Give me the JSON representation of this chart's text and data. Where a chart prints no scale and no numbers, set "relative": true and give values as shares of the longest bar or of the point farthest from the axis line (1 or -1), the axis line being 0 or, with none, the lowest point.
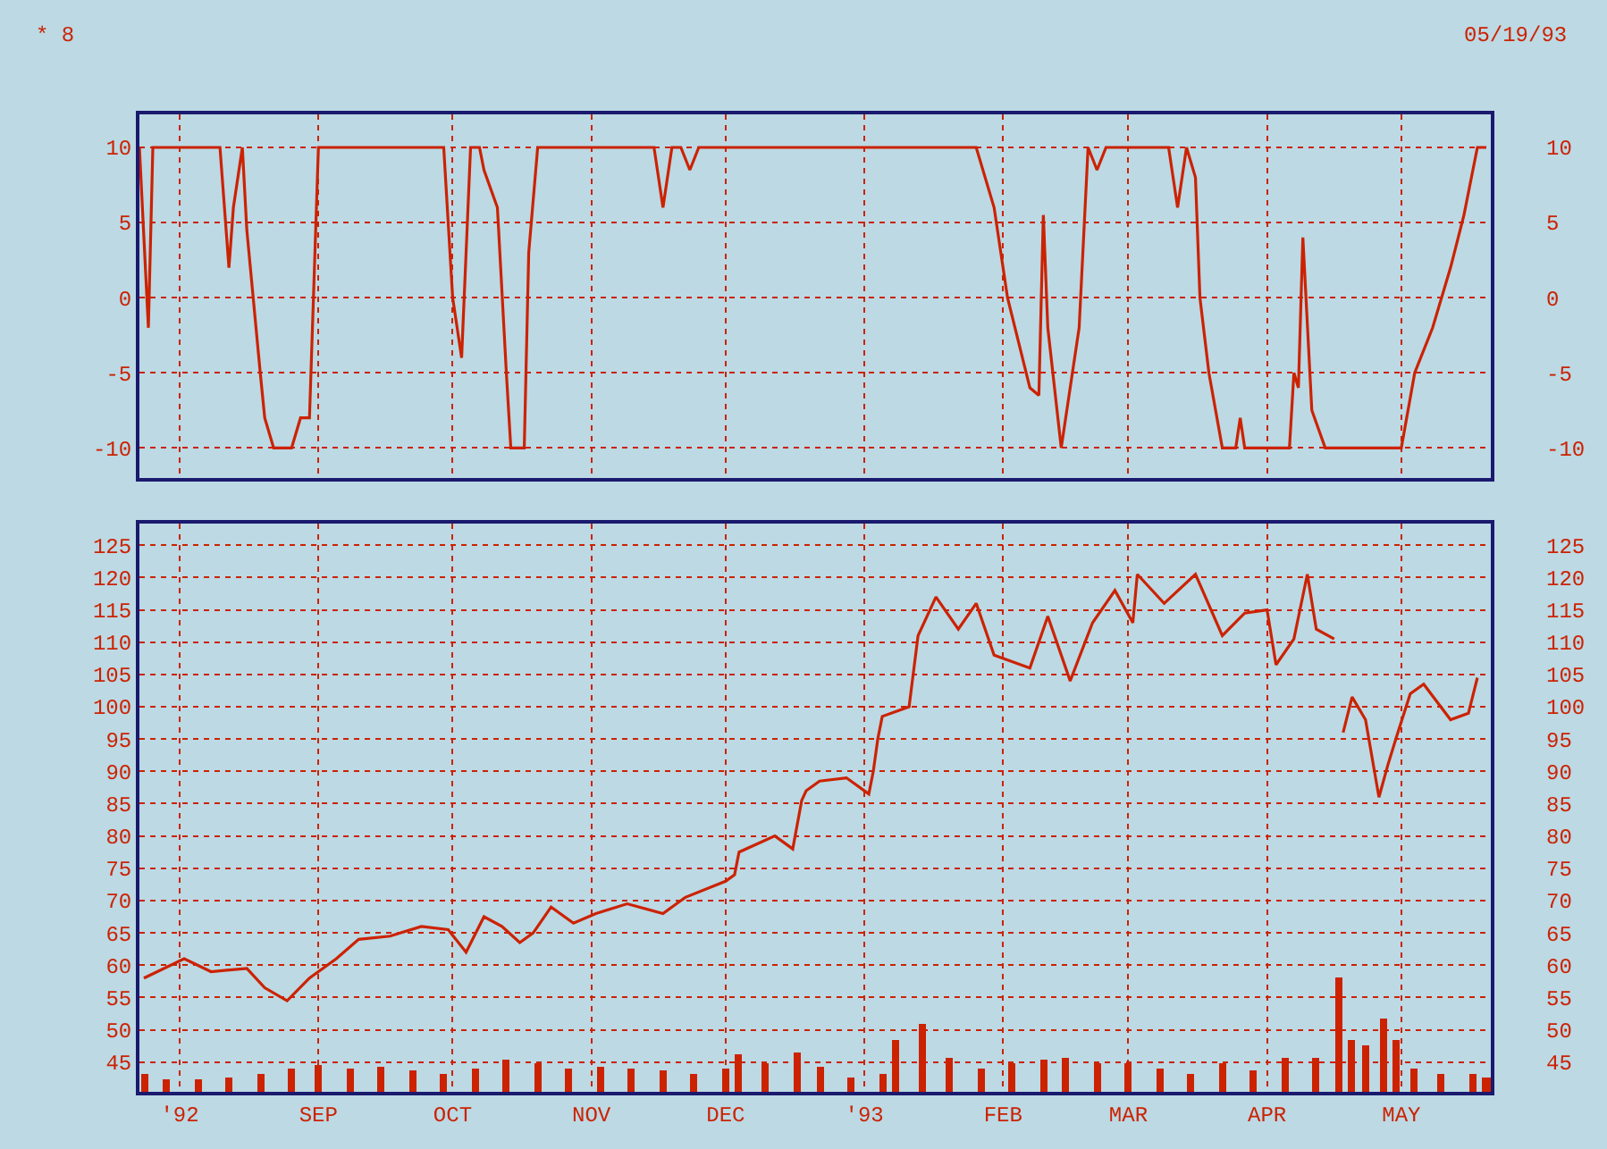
{
  "chart_data": [
    {
      "type": "line",
      "annotations": [
        "* 8",
        "05/19/93"
      ],
      "color": "#cc2200",
      "marker": "none",
      "grid": true,
      "tick_labels": "y",
      "xlim": [
        "1992-07-23",
        "1993-05-21"
      ],
      "ylim": [
        -12,
        12.2
      ],
      "yticks": [
        -10,
        -5,
        0,
        5,
        10
      ],
      "y2lim": [
        -12,
        12.2
      ],
      "y2ticks": [
        -10,
        -5,
        0,
        5,
        10
      ],
      "x": [
        "1992-07-23",
        "1992-07-24",
        "1992-07-25",
        "1992-07-26",
        "1992-08-10",
        "1992-08-12",
        "1992-08-13",
        "1992-08-15",
        "1992-08-16",
        "1992-08-19",
        "1992-08-20",
        "1992-08-22",
        "1992-08-26",
        "1992-08-28",
        "1992-08-30",
        "1992-09-01",
        "1992-09-29",
        "1992-10-01",
        "1992-10-03",
        "1992-10-05",
        "1992-10-07",
        "1992-10-08",
        "1992-10-11",
        "1992-10-13",
        "1992-10-14",
        "1992-10-17",
        "1992-10-18",
        "1992-10-20",
        "1992-11-15",
        "1992-11-17",
        "1992-11-19",
        "1992-11-21",
        "1992-11-23",
        "1992-11-25",
        "1993-01-26",
        "1993-01-30",
        "1993-02-02",
        "1993-02-07",
        "1993-02-09",
        "1993-02-10",
        "1993-02-11",
        "1993-02-14",
        "1993-02-18",
        "1993-02-20",
        "1993-02-22",
        "1993-02-24",
        "1993-03-10",
        "1993-03-12",
        "1993-03-14",
        "1993-03-16",
        "1993-03-17",
        "1993-03-19",
        "1993-03-22",
        "1993-03-25",
        "1993-03-26",
        "1993-03-27",
        "1993-04-06",
        "1993-04-07",
        "1993-04-08",
        "1993-04-09",
        "1993-04-11",
        "1993-04-14",
        "1993-05-01",
        "1993-05-04",
        "1993-05-08",
        "1993-05-12",
        "1993-05-15",
        "1993-05-18",
        "1993-05-20"
      ],
      "values": [
        10,
        4,
        -2,
        10,
        10,
        2,
        6,
        10,
        4.5,
        -5,
        -8,
        -10,
        -10,
        -8,
        -8,
        10,
        10,
        0,
        -4,
        10,
        10,
        8.5,
        6,
        -5,
        -10,
        -10,
        3,
        10,
        10,
        6,
        10,
        10,
        8.5,
        10,
        10,
        6,
        0,
        -6,
        -6.5,
        5.5,
        -2,
        -10,
        -2,
        10,
        8.5,
        10,
        10,
        6,
        10,
        8,
        0,
        -5,
        -10,
        -10,
        -8,
        -10,
        -10,
        -5,
        -6,
        4,
        -7.5,
        -10,
        -10,
        -5,
        -2,
        2,
        5.5,
        10,
        10
      ]
    },
    {
      "type": "line",
      "color": "#cc2200",
      "marker": "none",
      "grid": true,
      "xlim": [
        "1992-07-23",
        "1993-05-21"
      ],
      "xticks": [
        {
          "value": "1992-08-01",
          "label": "'92"
        },
        {
          "value": "1992-09-01",
          "label": "SEP"
        },
        {
          "value": "1992-10-01",
          "label": "OCT"
        },
        {
          "value": "1992-11-01",
          "label": "NOV"
        },
        {
          "value": "1992-12-01",
          "label": "DEC"
        },
        {
          "value": "1993-01-01",
          "label": "'93"
        },
        {
          "value": "1993-02-01",
          "label": "FEB"
        },
        {
          "value": "1993-03-01",
          "label": "MAR"
        },
        {
          "value": "1993-04-01",
          "label": "APR"
        },
        {
          "value": "1993-05-01",
          "label": "MAY"
        }
      ],
      "ylim": [
        40.4,
        128.3
      ],
      "yticks": [
        45,
        50,
        55,
        60,
        65,
        70,
        75,
        80,
        85,
        90,
        95,
        100,
        105,
        110,
        115,
        120,
        125
      ],
      "y2lim": [
        40.4,
        128.3
      ],
      "y2ticks": [
        45,
        50,
        55,
        60,
        65,
        70,
        75,
        80,
        85,
        90,
        95,
        100,
        105,
        110,
        115,
        120,
        125
      ],
      "x": [
        "1992-07-24",
        "1992-08-02",
        "1992-08-08",
        "1992-08-16",
        "1992-08-20",
        "1992-08-25",
        "1992-08-30",
        "1992-09-05",
        "1992-09-10",
        "1992-09-17",
        "1992-09-24",
        "1992-09-30",
        "1992-10-04",
        "1992-10-08",
        "1992-10-12",
        "1992-10-16",
        "1992-10-19",
        "1992-10-23",
        "1992-10-28",
        "1992-11-02",
        "1992-11-09",
        "1992-11-17",
        "1992-11-22",
        "1992-12-01",
        "1992-12-03",
        "1992-12-04",
        "1992-12-12",
        "1992-12-16",
        "1992-12-18",
        "1992-12-19",
        "1992-12-22",
        "1992-12-28",
        "1993-01-02",
        "1993-01-03",
        "1993-01-04",
        "1993-01-05",
        "1993-01-11",
        "1993-01-13",
        "1993-01-17",
        "1993-01-22",
        "1993-01-26",
        "1993-01-30",
        "1993-02-07",
        "1993-02-11",
        "1993-02-16",
        "1993-02-21",
        "1993-02-26",
        "1993-03-02",
        "1993-03-03",
        "1993-03-09",
        "1993-03-16",
        "1993-03-22",
        "1993-03-27",
        "1993-04-01",
        "1993-04-03",
        "1993-04-07",
        "1993-04-10",
        "1993-04-12",
        "1993-04-16",
        "1993-04-17",
        "1993-04-18",
        "1993-04-20",
        "1993-04-23",
        "1993-04-26",
        "1993-04-28",
        "1993-04-30",
        "1993-05-03",
        "1993-05-06",
        "1993-05-12",
        "1993-05-16",
        "1993-05-18"
      ],
      "values": [
        58,
        61,
        59,
        59.5,
        56.5,
        54.5,
        58,
        61,
        64,
        64.5,
        66,
        65.5,
        62,
        67.5,
        66,
        63.5,
        65,
        69,
        66.5,
        68,
        69.5,
        68,
        70.5,
        73,
        74,
        77.5,
        80,
        78,
        85.5,
        87,
        88.5,
        89,
        86.5,
        90,
        95,
        98.5,
        100,
        111,
        117,
        112,
        116,
        108,
        106,
        114,
        104,
        113,
        118,
        113,
        120.5,
        116,
        120.5,
        111,
        114.5,
        115,
        106.5,
        110.5,
        120.5,
        112,
        110.5,
        null,
        96,
        101.5,
        98,
        86,
        91,
        95.5,
        102,
        103.5,
        98,
        99,
        104.5
      ]
    },
    {
      "type": "bar",
      "relative": true,
      "color": "#cc2200",
      "tick_labels": false,
      "xlim": [
        "1992-07-23",
        "1993-05-21"
      ],
      "x": [
        "1992-07-24",
        "1992-07-29",
        "1992-08-05",
        "1992-08-12",
        "1992-08-19",
        "1992-08-26",
        "1992-09-01",
        "1992-09-08",
        "1992-09-15",
        "1992-09-22",
        "1992-09-29",
        "1992-10-06",
        "1992-10-13",
        "1992-10-20",
        "1992-10-27",
        "1992-11-03",
        "1992-11-10",
        "1992-11-17",
        "1992-11-24",
        "1992-12-01",
        "1992-12-04",
        "1992-12-10",
        "1992-12-17",
        "1992-12-22",
        "1992-12-29",
        "1993-01-05",
        "1993-01-08",
        "1993-01-14",
        "1993-01-20",
        "1993-01-27",
        "1993-02-03",
        "1993-02-10",
        "1993-02-15",
        "1993-02-22",
        "1993-03-01",
        "1993-03-08",
        "1993-03-15",
        "1993-03-22",
        "1993-03-29",
        "1993-04-05",
        "1993-04-12",
        "1993-04-17",
        "1993-04-20",
        "1993-04-23",
        "1993-04-27",
        "1993-04-30",
        "1993-05-04",
        "1993-05-10",
        "1993-05-17",
        "1993-05-20"
      ],
      "values": [
        0.15,
        0.1,
        0.1,
        0.12,
        0.15,
        0.2,
        0.23,
        0.2,
        0.22,
        0.18,
        0.15,
        0.2,
        0.28,
        0.25,
        0.2,
        0.22,
        0.2,
        0.18,
        0.15,
        0.2,
        0.33,
        0.25,
        0.35,
        0.22,
        0.12,
        0.15,
        0.46,
        0.6,
        0.3,
        0.2,
        0.25,
        0.28,
        0.3,
        0.25,
        0.25,
        0.2,
        0.15,
        0.25,
        0.18,
        0.3,
        0.3,
        1.0,
        0.45,
        0.4,
        0.64,
        0.45,
        0.2,
        0.15,
        0.15,
        0.12
      ]
    }
  ]
}
